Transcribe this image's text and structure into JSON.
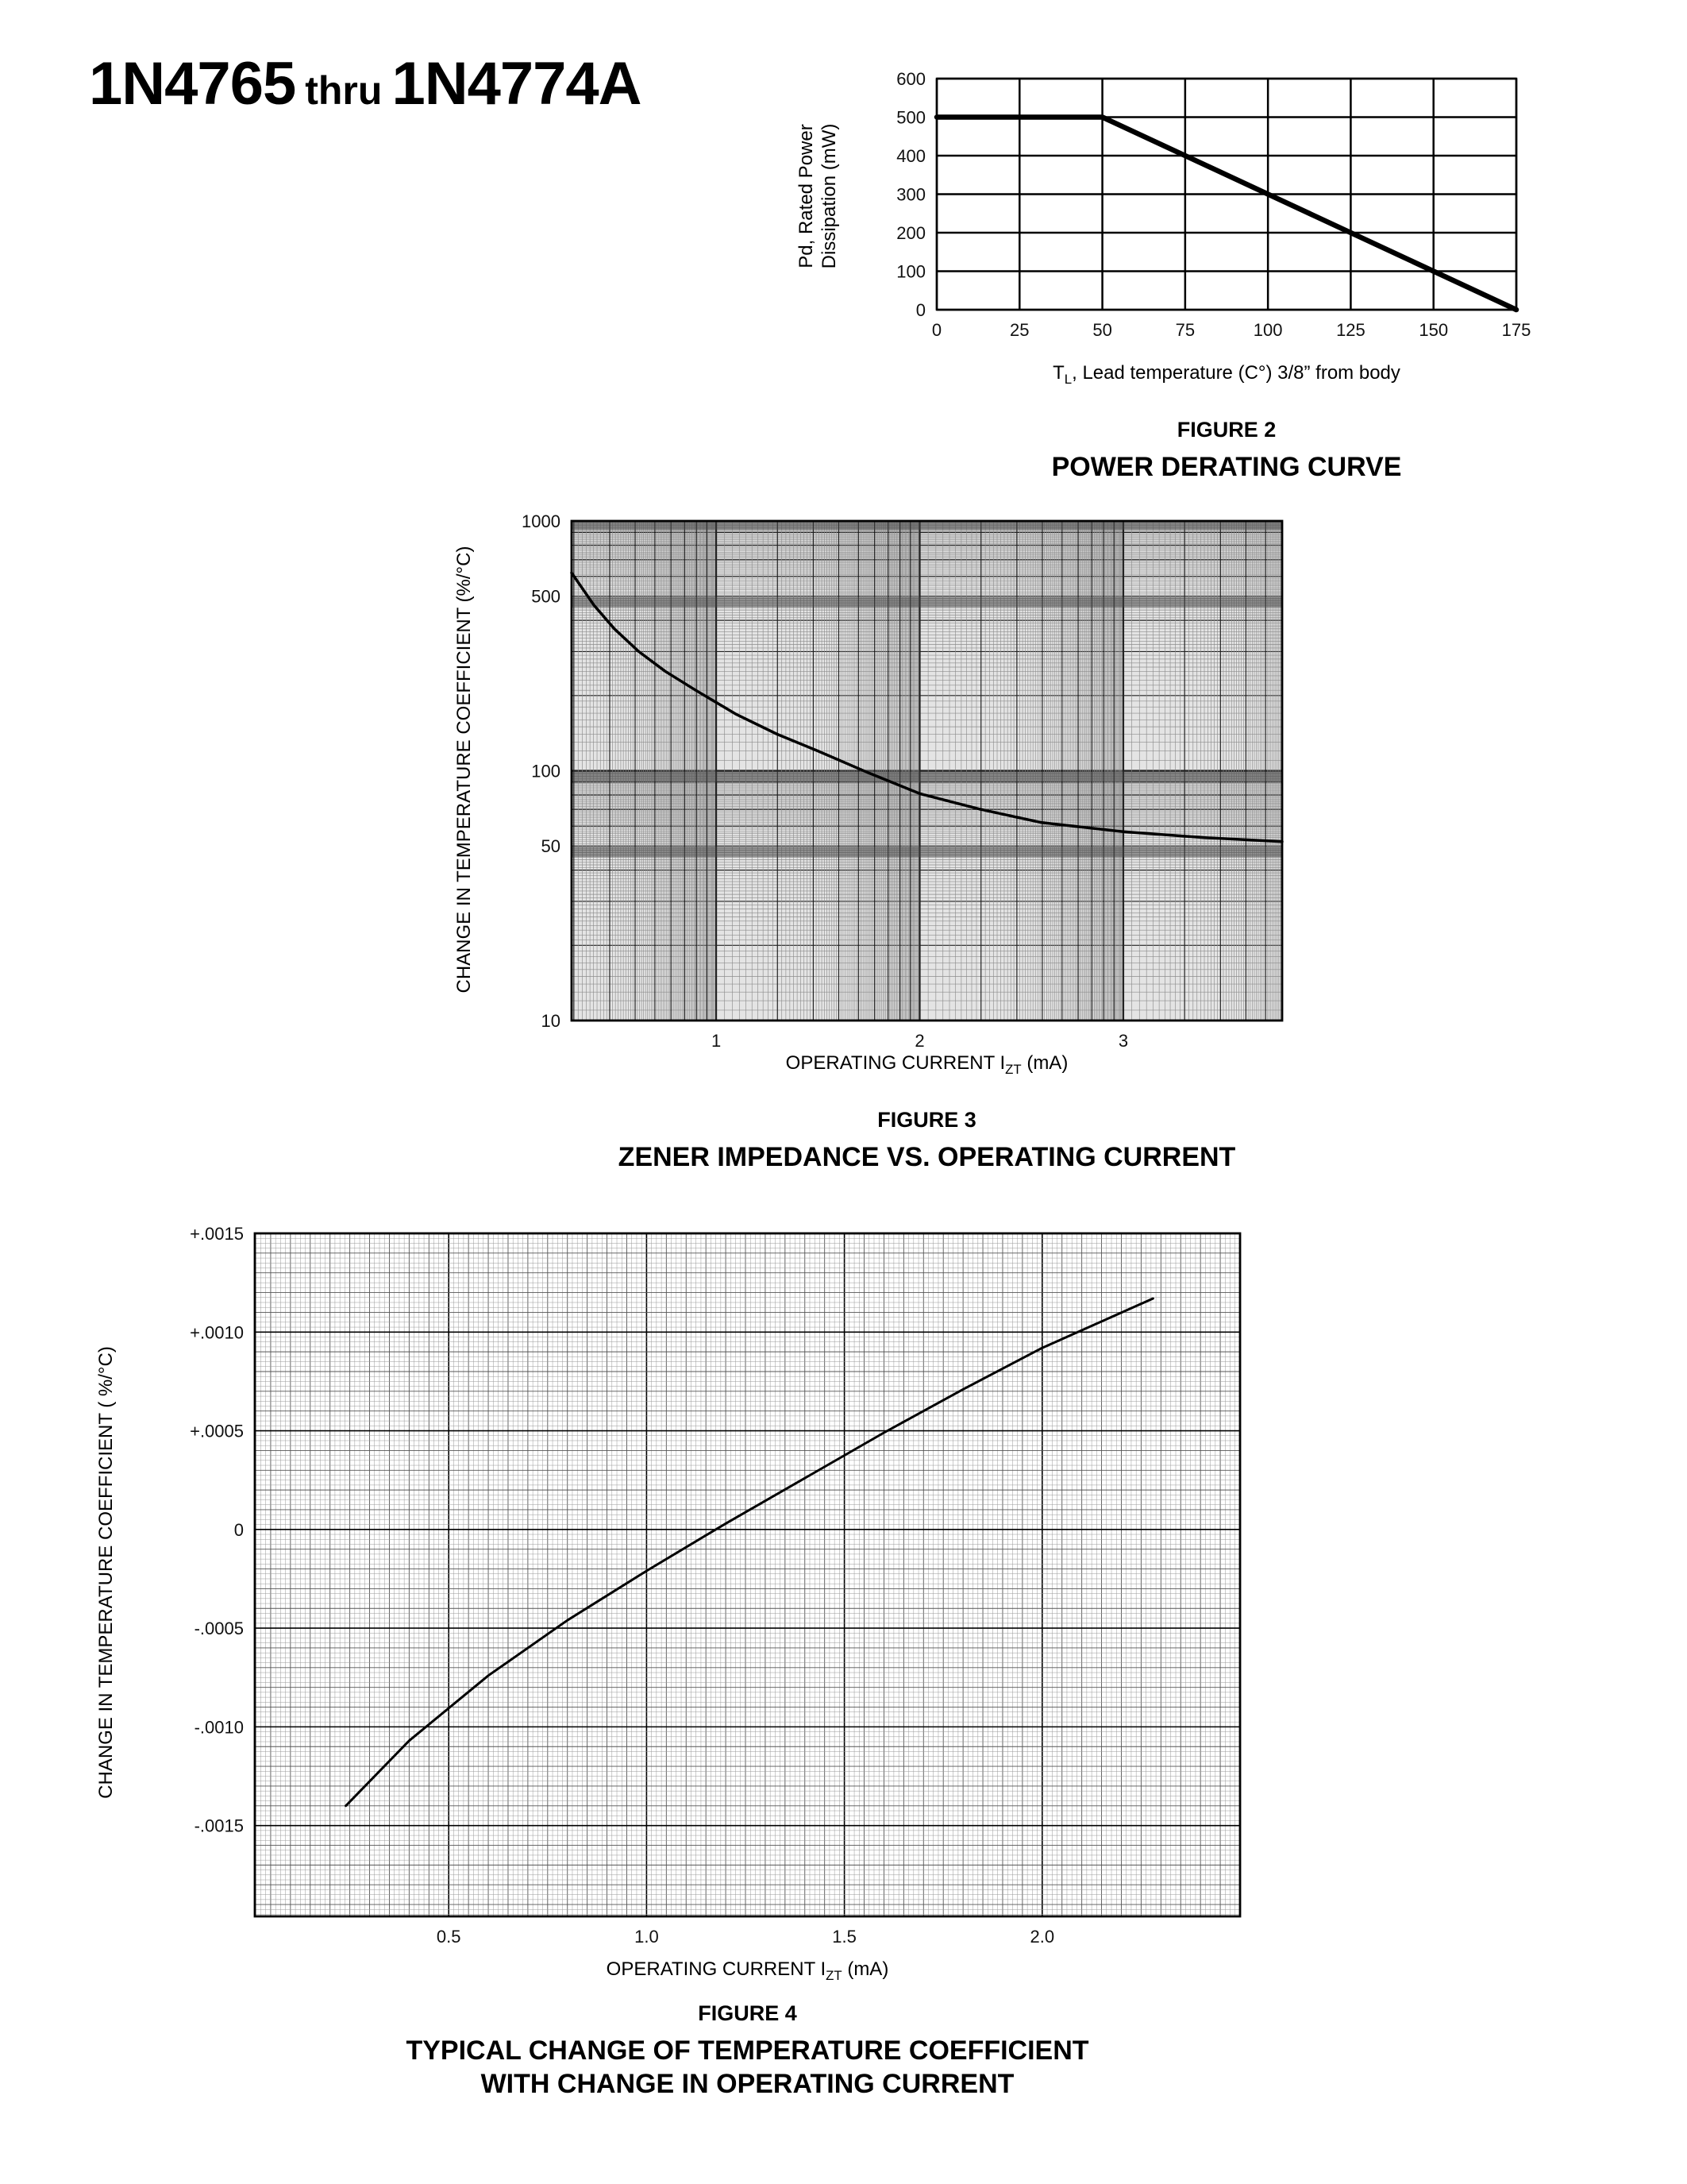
{
  "header": {
    "title_main": "1N4765",
    "title_mid": "thru",
    "title_end": "1N4774A"
  },
  "figure2": {
    "figure_label": "FIGURE 2",
    "title": "POWER DERATING CURVE",
    "ylabel_line1": "Pd, Rated Power",
    "ylabel_line2": "Dissipation (mW)",
    "xlabel_prefix": "T",
    "xlabel_sub": "L",
    "xlabel_rest": ", Lead temperature (C°) 3/8” from body"
  },
  "figure3": {
    "figure_label": "FIGURE 3",
    "title": "ZENER IMPEDANCE VS. OPERATING CURRENT",
    "ylabel": "CHANGE IN TEMPERATURE COEFFICIENT (%/°C)",
    "xlabel_prefix": "OPERATING CURRENT I",
    "xlabel_sub": "ZT",
    "xlabel_rest": " (mA)"
  },
  "figure4": {
    "figure_label": "FIGURE 4",
    "title_line1": "TYPICAL CHANGE OF TEMPERATURE COEFFICIENT",
    "title_line2": "WITH CHANGE IN OPERATING CURRENT",
    "ylabel": "CHANGE IN TEMPERATURE COEFFICIENT ( %/°C)",
    "xlabel_prefix": "OPERATING CURRENT I",
    "xlabel_sub": "ZT",
    "xlabel_rest": " (mA)"
  },
  "chart_data": [
    {
      "type": "line",
      "name": "power-derating-curve",
      "title": "POWER DERATING CURVE",
      "xlabel": "TL, Lead temperature (C°) 3/8” from body",
      "ylabel": "Pd, Rated Power Dissipation (mW)",
      "xlim": [
        0,
        175
      ],
      "ylim": [
        0,
        600
      ],
      "xticks": [
        0,
        25,
        50,
        75,
        100,
        125,
        150,
        175
      ],
      "xtick_labels": [
        "0",
        "25",
        "50",
        "75",
        "100",
        "125",
        "150",
        "175"
      ],
      "yticks": [
        0,
        100,
        200,
        300,
        400,
        500,
        600
      ],
      "ytick_labels": [
        "0",
        "100",
        "200",
        "300",
        "400",
        "500",
        "600"
      ],
      "grid": "on",
      "x": [
        0,
        50,
        175
      ],
      "y": [
        500,
        500,
        0
      ]
    },
    {
      "type": "line",
      "name": "zener-impedance-vs-operating-current",
      "title": "ZENER IMPEDANCE VS. OPERATING CURRENT",
      "xlabel": "OPERATING CURRENT IZT (mA)",
      "ylabel": "CHANGE IN TEMPERATURE COEFFICIENT (%/°C)",
      "yscale": "log",
      "xlim": [
        0.29,
        3.78
      ],
      "ylim": [
        10,
        1000
      ],
      "xticks": [
        1,
        2,
        3
      ],
      "xtick_labels": [
        "1",
        "2",
        "3"
      ],
      "yticks": [
        1000,
        500,
        100,
        50,
        10
      ],
      "ytick_labels": [
        "1000",
        "500",
        "100",
        "50",
        "10"
      ],
      "grid": "dense-log-paper",
      "x": [
        0.29,
        0.4,
        0.5,
        0.62,
        0.75,
        0.9,
        1.1,
        1.3,
        1.5,
        1.75,
        2.0,
        2.3,
        2.6,
        3.0,
        3.4,
        3.78
      ],
      "y": [
        620,
        460,
        370,
        300,
        250,
        210,
        168,
        140,
        120,
        98,
        81,
        70,
        62,
        57,
        54,
        52
      ]
    },
    {
      "type": "line",
      "name": "change-of-temperature-coefficient",
      "title": "TYPICAL CHANGE OF TEMPERATURE COEFFICIENT WITH CHANGE IN OPERATING CURRENT",
      "xlabel": "OPERATING CURRENT IZT (mA)",
      "ylabel": "CHANGE IN TEMPERATURE COEFFICIENT ( %/°C)",
      "xlim": [
        0.01,
        2.5
      ],
      "ylim": [
        -0.00196,
        0.0015
      ],
      "xticks": [
        0.5,
        1.0,
        1.5,
        2.0
      ],
      "xtick_labels": [
        "0.5",
        "1.0",
        "1.5",
        "2.0"
      ],
      "yticks": [
        0.0015,
        0.001,
        0.0005,
        0,
        -0.0005,
        -0.001,
        -0.0015
      ],
      "ytick_labels": [
        "+.0015",
        "+.0010",
        "+.0005",
        "0",
        "-.0005",
        "-.0010",
        "-.0015"
      ],
      "grid": "dense-fine-paper",
      "x": [
        0.24,
        0.4,
        0.6,
        0.8,
        1.0,
        1.2,
        1.4,
        1.6,
        1.8,
        2.0,
        2.28
      ],
      "y": [
        -0.0014,
        -0.00107,
        -0.00074,
        -0.00046,
        -0.00021,
        3e-05,
        0.00026,
        0.00049,
        0.00071,
        0.00092,
        0.00117
      ]
    }
  ]
}
